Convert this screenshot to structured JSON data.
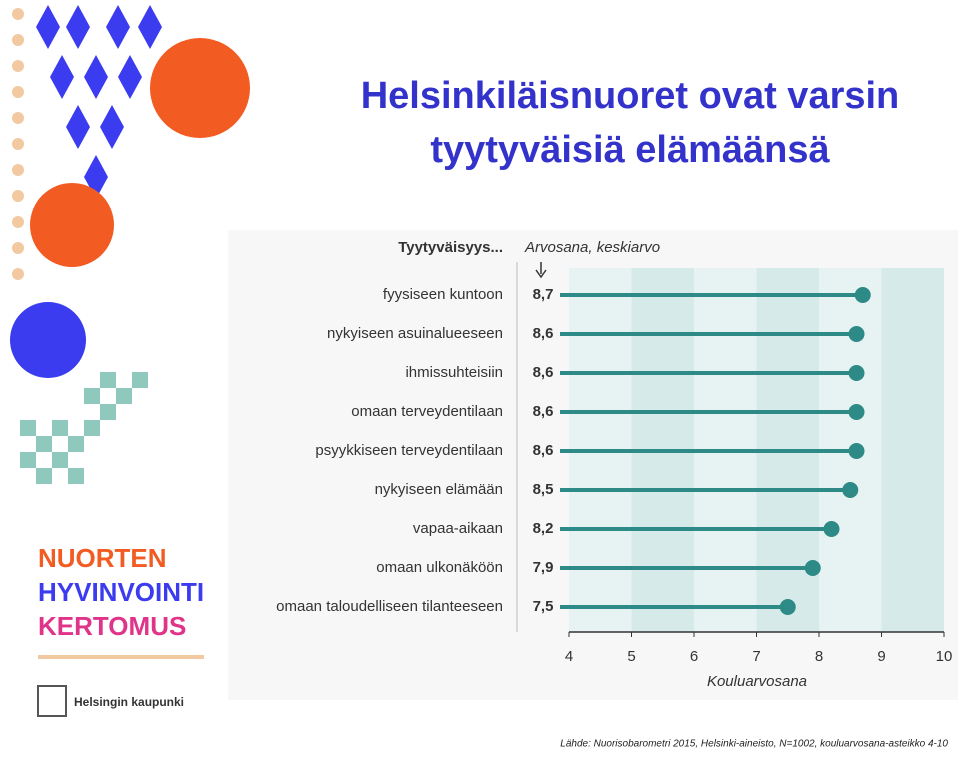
{
  "slide": {
    "title_line1": "Helsinkiläisnuoret ovat varsin",
    "title_line2": "tyytyväisiä elämäänsä",
    "logo_lines": [
      "NUORTEN",
      "HYVINVOINTI",
      "KERTOMUS"
    ],
    "city": "Helsingin kaupunki",
    "source": "Lähde: Nuorisobarometri 2015, Helsinki-aineisto, N=1002, kouluarvosana-asteikko 4-10"
  },
  "chart_data": {
    "type": "lollipop",
    "header": "Tyytyväisyys...",
    "value_header": "Arvosana, keskiarvo",
    "x_label": "Kouluarvosana",
    "color": "#2e8a86",
    "categories": [
      "fyysiseen kuntoon",
      "nykyiseen asuinalueeseen",
      "ihmissuhteisiin",
      "omaan terveydentilaan",
      "psyykkiseen terveydentilaan",
      "nykyiseen elämään",
      "vapaa-aikaan",
      "omaan ulkonäköön",
      "omaan taloudelliseen tilanteeseen"
    ],
    "values": [
      8.7,
      8.6,
      8.6,
      8.6,
      8.6,
      8.5,
      8.2,
      7.9,
      7.5
    ],
    "value_labels": [
      "8,7",
      "8,6",
      "8,6",
      "8,6",
      "8,6",
      "8,5",
      "8,2",
      "7,9",
      "7,5"
    ],
    "xlim": [
      4,
      10
    ],
    "xticks": [
      4,
      5,
      6,
      7,
      8,
      9,
      10
    ]
  }
}
